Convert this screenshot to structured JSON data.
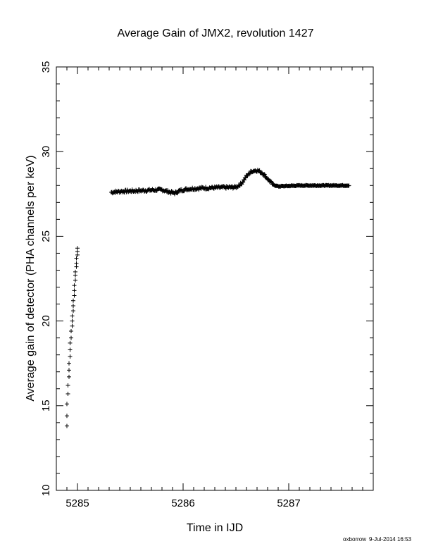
{
  "chart_data": {
    "type": "scatter",
    "title": "Average Gain of JMX2, revolution 1427",
    "xlabel": "Time in IJD",
    "ylabel": "Average gain of detector (PHA channels per keV)",
    "xlim": [
      5284.8,
      5287.8
    ],
    "ylim": [
      10,
      35
    ],
    "x_ticks": [
      5285,
      5286,
      5287
    ],
    "y_ticks": [
      10,
      15,
      20,
      25,
      30,
      35
    ],
    "marker": "+",
    "series": [
      {
        "points": [
          [
            5284.9,
            13.8
          ],
          [
            5284.9,
            14.4
          ],
          [
            5284.9,
            15.1
          ],
          [
            5284.91,
            15.7
          ],
          [
            5284.91,
            16.2
          ],
          [
            5284.92,
            16.7
          ],
          [
            5284.92,
            17.1
          ],
          [
            5284.92,
            17.5
          ],
          [
            5284.93,
            17.9
          ],
          [
            5284.93,
            18.3
          ],
          [
            5284.93,
            18.7
          ],
          [
            5284.94,
            19.0
          ],
          [
            5284.94,
            19.4
          ],
          [
            5284.95,
            19.7
          ],
          [
            5284.95,
            20.0
          ],
          [
            5284.95,
            20.3
          ],
          [
            5284.96,
            20.6
          ],
          [
            5284.96,
            20.9
          ],
          [
            5284.96,
            21.2
          ],
          [
            5284.97,
            21.5
          ],
          [
            5284.97,
            21.8
          ],
          [
            5284.97,
            22.1
          ],
          [
            5284.98,
            22.4
          ],
          [
            5284.98,
            22.7
          ],
          [
            5284.98,
            22.9
          ],
          [
            5284.99,
            23.2
          ],
          [
            5284.99,
            23.4
          ],
          [
            5284.99,
            23.7
          ],
          [
            5285.0,
            23.9
          ],
          [
            5285.0,
            24.1
          ],
          [
            5285.0,
            24.3
          ]
        ]
      },
      {
        "x_start": 5285.32,
        "x_end": 5287.57,
        "step": 0.006,
        "trend": [
          [
            5285.32,
            27.6
          ],
          [
            5285.4,
            27.65
          ],
          [
            5285.6,
            27.7
          ],
          [
            5285.8,
            27.75
          ],
          [
            5285.88,
            27.6
          ],
          [
            5285.92,
            27.55
          ],
          [
            5285.97,
            27.7
          ],
          [
            5286.05,
            27.8
          ],
          [
            5286.2,
            27.85
          ],
          [
            5286.35,
            27.88
          ],
          [
            5286.5,
            27.9
          ],
          [
            5286.55,
            28.1
          ],
          [
            5286.6,
            28.55
          ],
          [
            5286.65,
            28.85
          ],
          [
            5286.7,
            28.9
          ],
          [
            5286.75,
            28.75
          ],
          [
            5286.8,
            28.4
          ],
          [
            5286.85,
            28.05
          ],
          [
            5286.9,
            27.95
          ],
          [
            5287.1,
            28.0
          ],
          [
            5287.57,
            28.0
          ]
        ],
        "noise": 0.08
      }
    ]
  },
  "footer": {
    "user": "oxborrow",
    "timestamp": "9-Jul-2014 16:53"
  },
  "colors": {
    "foreground": "#000000",
    "background": "#ffffff"
  }
}
